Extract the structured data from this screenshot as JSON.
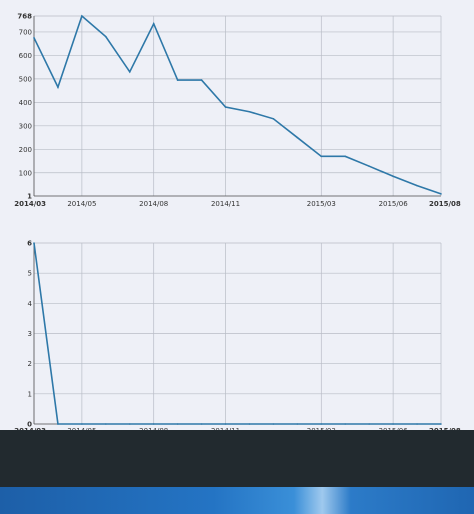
{
  "chart_data": [
    {
      "type": "line",
      "x": [
        "2014/03",
        "2014/04",
        "2014/05",
        "2014/06",
        "2014/07",
        "2014/08",
        "2014/09",
        "2014/10",
        "2014/11",
        "2014/12",
        "2015/01",
        "2015/02",
        "2015/03",
        "2015/04",
        "2015/05",
        "2015/06",
        "2015/07",
        "2015/08"
      ],
      "series": [
        {
          "values": [
            675,
            465,
            768,
            680,
            530,
            735,
            495,
            495,
            380,
            360,
            330,
            250,
            170,
            170,
            128,
            85,
            45,
            10
          ]
        }
      ],
      "ylim": [
        1,
        768
      ],
      "yticks": [
        "1",
        "100",
        "200",
        "300",
        "400",
        "500",
        "600",
        "700",
        "768"
      ],
      "xticks": [
        "2014/03",
        "2014/05",
        "2014/08",
        "2014/11",
        "2015/03",
        "2015/06",
        "2015/08"
      ],
      "grid": true
    },
    {
      "type": "line",
      "x": [
        "2014/03",
        "2014/04",
        "2014/05",
        "2014/06",
        "2014/07",
        "2014/08",
        "2014/09",
        "2014/10",
        "2014/11",
        "2014/12",
        "2015/01",
        "2015/02",
        "2015/03",
        "2015/04",
        "2015/05",
        "2015/06",
        "2015/07",
        "2015/08"
      ],
      "series": [
        {
          "values": [
            6,
            0,
            0,
            0,
            0,
            0,
            0,
            0,
            0,
            0,
            0,
            0,
            0,
            0,
            0,
            0,
            0,
            0
          ]
        }
      ],
      "ylim": [
        0,
        6
      ],
      "yticks": [
        "0",
        "1",
        "2",
        "3",
        "4",
        "5",
        "6"
      ],
      "xticks": [
        "2014/03",
        "2014/05",
        "2014/08",
        "2014/11",
        "2015/03",
        "2015/06",
        "2015/08"
      ],
      "grid": true
    }
  ],
  "colors": {
    "series": "#2e78a8",
    "background": "#eef0f7",
    "taskbar": "#222a2f"
  }
}
